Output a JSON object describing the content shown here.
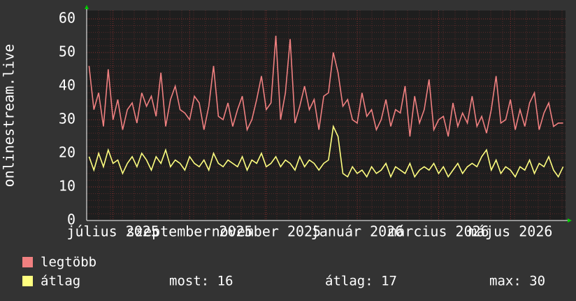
{
  "chart_data": {
    "type": "line",
    "y_label": "onlinestream.live",
    "categories": [
      null,
      null,
      null,
      null,
      null,
      "július 2025",
      null,
      null,
      null,
      null,
      null,
      null,
      null,
      null,
      null,
      null,
      null,
      null,
      null,
      null,
      null,
      "szeptember 2025",
      null,
      null,
      null,
      null,
      null,
      null,
      null,
      null,
      null,
      null,
      null,
      null,
      null,
      null,
      null,
      "november 2025",
      null,
      null,
      null,
      null,
      null,
      null,
      null,
      null,
      null,
      null,
      null,
      null,
      null,
      null,
      null,
      null,
      null,
      null,
      "január 2026",
      null,
      null,
      null,
      null,
      null,
      null,
      null,
      null,
      null,
      null,
      null,
      null,
      null,
      null,
      null,
      null,
      "március 2026",
      null,
      null,
      null,
      null,
      null,
      null,
      null,
      null,
      null,
      null,
      null,
      null,
      null,
      null,
      "május 2026",
      null,
      null,
      null,
      null,
      null,
      null,
      null,
      null,
      null,
      null,
      null
    ],
    "series": [
      {
        "name": "legtöbb",
        "color": "#f08080",
        "values": [
          46,
          33,
          38,
          28,
          45,
          30,
          36,
          27,
          33,
          35,
          29,
          38,
          34,
          37,
          31,
          44,
          28,
          36,
          40,
          33,
          32,
          30,
          37,
          35,
          27,
          34,
          46,
          31,
          30,
          35,
          28,
          33,
          37,
          27,
          30,
          36,
          43,
          33,
          35,
          55,
          30,
          38,
          54,
          29,
          34,
          40,
          33,
          36,
          27,
          37,
          38,
          50,
          44,
          34,
          36,
          30,
          29,
          38,
          31,
          33,
          27,
          30,
          36,
          28,
          33,
          32,
          40,
          25,
          37,
          29,
          33,
          42,
          27,
          30,
          31,
          25,
          35,
          28,
          32,
          29,
          37,
          28,
          31,
          26,
          33,
          43,
          29,
          30,
          36,
          27,
          33,
          28,
          35,
          38,
          27,
          32,
          35,
          28,
          29,
          29
        ]
      },
      {
        "name": "átlag",
        "color": "#ffff80",
        "values": [
          19,
          15,
          20,
          16,
          21,
          17,
          18,
          14,
          17,
          19,
          16,
          20,
          18,
          15,
          19,
          17,
          21,
          16,
          18,
          17,
          15,
          19,
          17,
          16,
          18,
          15,
          20,
          17,
          16,
          18,
          17,
          16,
          19,
          15,
          18,
          17,
          20,
          16,
          17,
          19,
          16,
          18,
          17,
          15,
          19,
          16,
          18,
          17,
          15,
          17,
          18,
          28,
          25,
          14,
          13,
          16,
          14,
          15,
          13,
          16,
          14,
          15,
          17,
          13,
          16,
          15,
          14,
          17,
          13,
          15,
          16,
          15,
          17,
          14,
          16,
          13,
          15,
          17,
          14,
          16,
          17,
          16,
          19,
          21,
          15,
          18,
          14,
          16,
          15,
          13,
          16,
          15,
          18,
          14,
          17,
          16,
          19,
          15,
          13,
          16
        ]
      }
    ],
    "stats": [
      "most: 16",
      "átlag: 17",
      "max: 30"
    ],
    "ylim": [
      0,
      60
    ],
    "yticks": [
      0,
      10,
      20,
      30,
      40,
      50,
      60
    ],
    "grid": true
  }
}
